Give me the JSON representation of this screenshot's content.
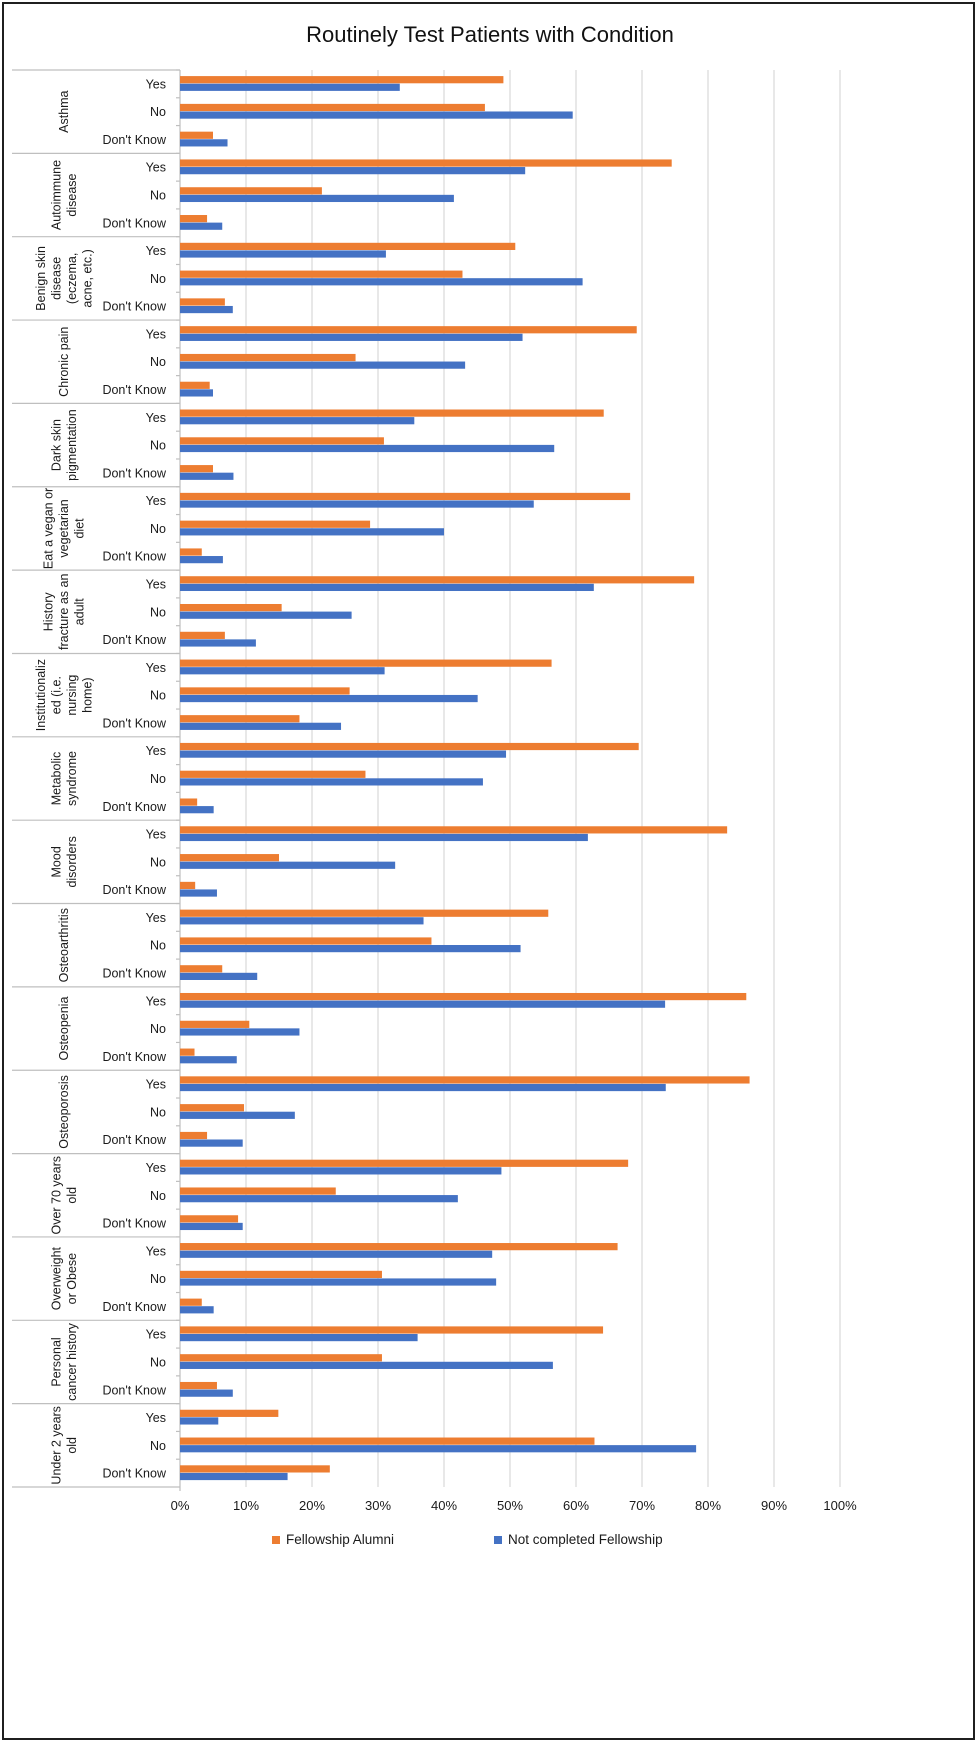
{
  "chart_data": {
    "type": "bar",
    "orientation": "horizontal",
    "title": "Routinely Test Patients with Condition",
    "xlabel": "",
    "ylabel": "",
    "xlim": [
      0,
      100
    ],
    "x_tick_labels": [
      "0%",
      "10%",
      "20%",
      "30%",
      "40%",
      "50%",
      "60%",
      "70%",
      "80%",
      "90%",
      "100%"
    ],
    "grid": true,
    "legend_position": "bottom",
    "colors": {
      "Fellowship Alumni": "#ED7D31",
      "Not completed Fellowship": "#4472C4"
    },
    "series_names": [
      "Fellowship Alumni",
      "Not completed Fellowship"
    ],
    "groups": [
      {
        "label_lines": [
          "Asthma"
        ],
        "items": [
          {
            "label": "Yes",
            "values": [
              49,
              33.3
            ]
          },
          {
            "label": "No",
            "values": [
              46.2,
              59.5
            ]
          },
          {
            "label": "Don't Know",
            "values": [
              5,
              7.2
            ]
          }
        ]
      },
      {
        "label_lines": [
          "Autoimmune",
          "disease"
        ],
        "items": [
          {
            "label": "Yes",
            "values": [
              74.5,
              52.3
            ]
          },
          {
            "label": "No",
            "values": [
              21.5,
              41.5
            ]
          },
          {
            "label": "Don't Know",
            "values": [
              4.1,
              6.4
            ]
          }
        ]
      },
      {
        "label_lines": [
          "Benign skin",
          "disease",
          "(eczema,",
          "acne, etc.)"
        ],
        "items": [
          {
            "label": "Yes",
            "values": [
              50.8,
              31.2
            ]
          },
          {
            "label": "No",
            "values": [
              42.8,
              61
            ]
          },
          {
            "label": "Don't Know",
            "values": [
              6.8,
              8
            ]
          }
        ]
      },
      {
        "label_lines": [
          "Chronic pain"
        ],
        "items": [
          {
            "label": "Yes",
            "values": [
              69.2,
              51.9
            ]
          },
          {
            "label": "No",
            "values": [
              26.6,
              43.2
            ]
          },
          {
            "label": "Don't Know",
            "values": [
              4.5,
              5
            ]
          }
        ]
      },
      {
        "label_lines": [
          "Dark skin",
          "pigmentation"
        ],
        "items": [
          {
            "label": "Yes",
            "values": [
              64.2,
              35.5
            ]
          },
          {
            "label": "No",
            "values": [
              30.9,
              56.7
            ]
          },
          {
            "label": "Don't Know",
            "values": [
              5,
              8.1
            ]
          }
        ]
      },
      {
        "label_lines": [
          "Eat a vegan or",
          "vegetarian",
          "diet"
        ],
        "items": [
          {
            "label": "Yes",
            "values": [
              68.2,
              53.6
            ]
          },
          {
            "label": "No",
            "values": [
              28.8,
              40
            ]
          },
          {
            "label": "Don't Know",
            "values": [
              3.3,
              6.5
            ]
          }
        ]
      },
      {
        "label_lines": [
          "History",
          "fracture as an",
          "adult"
        ],
        "items": [
          {
            "label": "Yes",
            "values": [
              77.9,
              62.7
            ]
          },
          {
            "label": "No",
            "values": [
              15.4,
              26
            ]
          },
          {
            "label": "Don't Know",
            "values": [
              6.8,
              11.5
            ]
          }
        ]
      },
      {
        "label_lines": [
          "Institutionaliz",
          "ed (i.e.",
          "nursing",
          "home)"
        ],
        "items": [
          {
            "label": "Yes",
            "values": [
              56.3,
              31
            ]
          },
          {
            "label": "No",
            "values": [
              25.7,
              45.1
            ]
          },
          {
            "label": "Don't Know",
            "values": [
              18.1,
              24.4
            ]
          }
        ]
      },
      {
        "label_lines": [
          "Metabolic",
          "syndrome"
        ],
        "items": [
          {
            "label": "Yes",
            "values": [
              69.5,
              49.4
            ]
          },
          {
            "label": "No",
            "values": [
              28.1,
              45.9
            ]
          },
          {
            "label": "Don't Know",
            "values": [
              2.6,
              5.1
            ]
          }
        ]
      },
      {
        "label_lines": [
          "Mood",
          "disorders"
        ],
        "items": [
          {
            "label": "Yes",
            "values": [
              82.9,
              61.8
            ]
          },
          {
            "label": "No",
            "values": [
              15,
              32.6
            ]
          },
          {
            "label": "Don't Know",
            "values": [
              2.3,
              5.6
            ]
          }
        ]
      },
      {
        "label_lines": [
          "Osteoarthritis"
        ],
        "items": [
          {
            "label": "Yes",
            "values": [
              55.8,
              36.9
            ]
          },
          {
            "label": "No",
            "values": [
              38.1,
              51.6
            ]
          },
          {
            "label": "Don't Know",
            "values": [
              6.4,
              11.7
            ]
          }
        ]
      },
      {
        "label_lines": [
          "Osteopenia"
        ],
        "items": [
          {
            "label": "Yes",
            "values": [
              85.8,
              73.5
            ]
          },
          {
            "label": "No",
            "values": [
              10.5,
              18.1
            ]
          },
          {
            "label": "Don't Know",
            "values": [
              2.2,
              8.6
            ]
          }
        ]
      },
      {
        "label_lines": [
          "Osteoporosis"
        ],
        "items": [
          {
            "label": "Yes",
            "values": [
              86.3,
              73.6
            ]
          },
          {
            "label": "No",
            "values": [
              9.7,
              17.4
            ]
          },
          {
            "label": "Don't Know",
            "values": [
              4.1,
              9.5
            ]
          }
        ]
      },
      {
        "label_lines": [
          "Over 70 years",
          "old"
        ],
        "items": [
          {
            "label": "Yes",
            "values": [
              67.9,
              48.7
            ]
          },
          {
            "label": "No",
            "values": [
              23.6,
              42.1
            ]
          },
          {
            "label": "Don't Know",
            "values": [
              8.8,
              9.5
            ]
          }
        ]
      },
      {
        "label_lines": [
          "Overweight",
          "or Obese"
        ],
        "items": [
          {
            "label": "Yes",
            "values": [
              66.3,
              47.3
            ]
          },
          {
            "label": "No",
            "values": [
              30.6,
              47.9
            ]
          },
          {
            "label": "Don't Know",
            "values": [
              3.3,
              5.1
            ]
          }
        ]
      },
      {
        "label_lines": [
          "Personal",
          "cancer history"
        ],
        "items": [
          {
            "label": "Yes",
            "values": [
              64.1,
              36
            ]
          },
          {
            "label": "No",
            "values": [
              30.6,
              56.5
            ]
          },
          {
            "label": "Don't Know",
            "values": [
              5.6,
              8
            ]
          }
        ]
      },
      {
        "label_lines": [
          "Under 2 years",
          "old"
        ],
        "items": [
          {
            "label": "Yes",
            "values": [
              14.9,
              5.8
            ]
          },
          {
            "label": "No",
            "values": [
              62.8,
              78.2
            ]
          },
          {
            "label": "Don't Know",
            "values": [
              22.7,
              16.3
            ]
          }
        ]
      }
    ]
  }
}
